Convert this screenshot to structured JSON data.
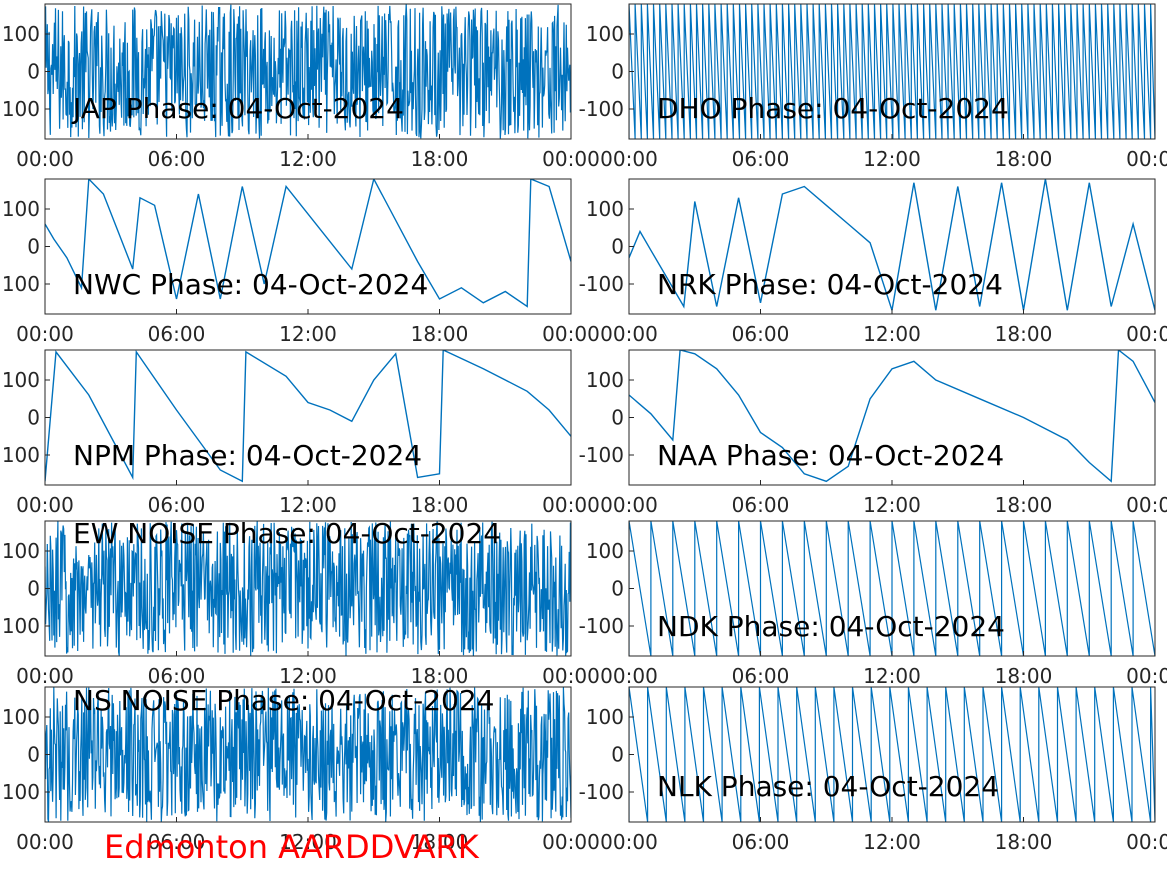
{
  "caption": "Edmonton AARDDVARK",
  "caption_color": "#ff0000",
  "line_color": "#0072bd",
  "chart_data": [
    {
      "type": "line",
      "title": "JAP Phase: 04-Oct-2024",
      "x_ticks": [
        "00:00",
        "06:00",
        "12:00",
        "18:00",
        "00:00"
      ],
      "y_ticks": [
        "100",
        "0",
        "100"
      ],
      "xlim": [
        "00:00",
        "24:00"
      ],
      "ylim": [
        -180,
        180
      ],
      "pattern": "noise",
      "series": [
        {
          "x": [
            "00:00",
            "01:00",
            "02:00",
            "03:00",
            "04:00",
            "05:00",
            "06:00",
            "07:00",
            "08:00",
            "09:00",
            "10:00",
            "11:00",
            "12:00",
            "13:00",
            "14:00",
            "15:00",
            "16:00",
            "17:00",
            "18:00",
            "19:00",
            "20:00",
            "21:00",
            "22:00",
            "23:00",
            "24:00"
          ],
          "y": [
            50,
            -120,
            160,
            -40,
            90,
            -170,
            20,
            140,
            -80,
            60,
            -150,
            110,
            -30,
            170,
            -100,
            40,
            -160,
            80,
            -60,
            130,
            -20,
            150,
            -110,
            70,
            -90
          ]
        }
      ]
    },
    {
      "type": "line",
      "title": "DHO Phase: 04-Oct-2024",
      "x_ticks": [
        "00:00",
        "06:00",
        "12:00",
        "18:00",
        "00:00"
      ],
      "y_ticks": [
        "100",
        "0",
        "-100"
      ],
      "xlim": [
        "00:00",
        "24:00"
      ],
      "ylim": [
        -180,
        180
      ],
      "pattern": "dense-wrap",
      "series": [
        {
          "x": [
            "00:00",
            "06:00",
            "12:00",
            "18:00",
            "24:00"
          ],
          "y": [
            180,
            -180,
            180,
            -180,
            180
          ]
        }
      ]
    },
    {
      "type": "line",
      "title": "NWC Phase: 04-Oct-2024",
      "x_ticks": [
        "00:00",
        "06:00",
        "12:00",
        "18:00",
        "00:00"
      ],
      "y_ticks": [
        "100",
        "0",
        "100"
      ],
      "xlim": [
        "00:00",
        "24:00"
      ],
      "ylim": [
        -180,
        180
      ],
      "pattern": "wrap",
      "series": [
        {
          "x": [
            "00:00",
            "00:24",
            "01:00",
            "01:40",
            "02:00",
            "02:40",
            "03:20",
            "04:00",
            "04:20",
            "05:00",
            "06:00",
            "07:00",
            "08:00",
            "09:00",
            "10:00",
            "11:00",
            "14:00",
            "15:00",
            "17:00",
            "18:00",
            "19:00",
            "20:00",
            "21:00",
            "22:00",
            "22:10",
            "23:00",
            "24:00"
          ],
          "y": [
            60,
            20,
            -30,
            -110,
            180,
            140,
            40,
            -60,
            130,
            110,
            -140,
            140,
            -140,
            160,
            -100,
            160,
            -60,
            180,
            -40,
            -140,
            -110,
            -150,
            -120,
            -160,
            180,
            160,
            -40
          ]
        }
      ]
    },
    {
      "type": "line",
      "title": "NRK Phase: 04-Oct-2024",
      "x_ticks": [
        "00:00",
        "06:00",
        "12:00",
        "18:00",
        "00:00"
      ],
      "y_ticks": [
        "100",
        "0",
        "-100"
      ],
      "xlim": [
        "00:00",
        "24:00"
      ],
      "ylim": [
        -180,
        180
      ],
      "pattern": "wrap",
      "series": [
        {
          "x": [
            "00:00",
            "00:30",
            "01:00",
            "02:30",
            "03:00",
            "04:00",
            "05:00",
            "06:00",
            "07:00",
            "08:00",
            "09:00",
            "10:00",
            "11:00",
            "12:00",
            "13:00",
            "14:00",
            "15:00",
            "16:00",
            "17:00",
            "18:00",
            "19:00",
            "20:00",
            "21:00",
            "22:00",
            "23:00",
            "24:00"
          ],
          "y": [
            -30,
            40,
            -10,
            -160,
            120,
            -160,
            130,
            -150,
            140,
            160,
            110,
            60,
            10,
            -170,
            170,
            -170,
            160,
            -160,
            170,
            -170,
            180,
            -170,
            170,
            -160,
            60,
            -170
          ]
        }
      ]
    },
    {
      "type": "line",
      "title": "NPM Phase: 04-Oct-2024",
      "x_ticks": [
        "00:00",
        "06:00",
        "12:00",
        "18:00",
        "00:00"
      ],
      "y_ticks": [
        "100",
        "0",
        "100"
      ],
      "xlim": [
        "00:00",
        "24:00"
      ],
      "ylim": [
        -180,
        180
      ],
      "pattern": "wrap",
      "series": [
        {
          "x": [
            "00:00",
            "00:30",
            "02:00",
            "04:00",
            "04:10",
            "06:00",
            "08:00",
            "09:00",
            "09:10",
            "11:00",
            "12:00",
            "13:00",
            "14:00",
            "15:00",
            "16:00",
            "17:00",
            "18:00",
            "18:10",
            "20:00",
            "21:00",
            "22:00",
            "23:00",
            "24:00"
          ],
          "y": [
            -170,
            175,
            60,
            -160,
            175,
            20,
            -140,
            -170,
            175,
            110,
            40,
            20,
            -10,
            100,
            170,
            -160,
            -150,
            180,
            130,
            100,
            70,
            20,
            -50
          ]
        }
      ]
    },
    {
      "type": "line",
      "title": "NAA Phase: 04-Oct-2024",
      "x_ticks": [
        "00:00",
        "06:00",
        "12:00",
        "18:00",
        "00:00"
      ],
      "y_ticks": [
        "100",
        "0",
        "-100"
      ],
      "xlim": [
        "00:00",
        "24:00"
      ],
      "ylim": [
        -180,
        180
      ],
      "pattern": "wrap",
      "series": [
        {
          "x": [
            "00:00",
            "01:00",
            "02:00",
            "02:20",
            "03:00",
            "04:00",
            "05:00",
            "06:00",
            "07:00",
            "08:00",
            "09:00",
            "10:00",
            "11:00",
            "12:00",
            "13:00",
            "14:00",
            "16:00",
            "18:00",
            "20:00",
            "21:00",
            "22:00",
            "22:20",
            "23:00",
            "24:00"
          ],
          "y": [
            60,
            10,
            -60,
            180,
            170,
            130,
            60,
            -40,
            -80,
            -150,
            -170,
            -130,
            50,
            130,
            150,
            100,
            50,
            0,
            -60,
            -120,
            -170,
            180,
            150,
            40
          ]
        }
      ]
    },
    {
      "type": "line",
      "title": "EW NOISE Phase: 04-Oct-2024",
      "x_ticks": [
        "00:00",
        "06:00",
        "12:00",
        "18:00",
        "00:00"
      ],
      "y_ticks": [
        "100",
        "0",
        "100"
      ],
      "xlim": [
        "00:00",
        "24:00"
      ],
      "ylim": [
        -180,
        180
      ],
      "pattern": "noise",
      "series": [
        {
          "x": [
            "00:00",
            "01:00",
            "02:00",
            "03:00",
            "04:00",
            "05:00",
            "06:00",
            "07:00",
            "08:00",
            "09:00",
            "10:00",
            "11:00",
            "12:00",
            "13:00",
            "14:00",
            "15:00",
            "16:00",
            "17:00",
            "18:00",
            "19:00",
            "20:00",
            "21:00",
            "22:00",
            "23:00",
            "24:00"
          ],
          "y": [
            20,
            -90,
            130,
            -140,
            60,
            -20,
            150,
            -110,
            80,
            -160,
            40,
            120,
            -60,
            170,
            -130,
            10,
            -80,
            140,
            -170,
            90,
            -40,
            160,
            -120,
            30,
            -70
          ]
        }
      ]
    },
    {
      "type": "line",
      "title": "NDK Phase: 04-Oct-2024",
      "x_ticks": [
        "00:00",
        "06:00",
        "12:00",
        "18:00",
        "00:00"
      ],
      "y_ticks": [
        "100",
        "0",
        "-100"
      ],
      "xlim": [
        "00:00",
        "24:00"
      ],
      "ylim": [
        -180,
        180
      ],
      "pattern": "dense-wrap",
      "series": [
        {
          "x": [
            "00:00",
            "06:00",
            "12:00",
            "18:00",
            "24:00"
          ],
          "y": [
            180,
            -180,
            180,
            -180,
            180
          ]
        }
      ]
    },
    {
      "type": "line",
      "title": "NS NOISE Phase: 04-Oct-2024",
      "x_ticks": [
        "00:00",
        "06:00",
        "12:00",
        "18:00",
        "00:00"
      ],
      "y_ticks": [
        "100",
        "0",
        "100"
      ],
      "xlim": [
        "00:00",
        "24:00"
      ],
      "ylim": [
        -180,
        180
      ],
      "pattern": "noise",
      "series": [
        {
          "x": [
            "00:00",
            "01:00",
            "02:00",
            "03:00",
            "04:00",
            "05:00",
            "06:00",
            "07:00",
            "08:00",
            "09:00",
            "10:00",
            "11:00",
            "12:00",
            "13:00",
            "14:00",
            "15:00",
            "16:00",
            "17:00",
            "18:00",
            "19:00",
            "20:00",
            "21:00",
            "22:00",
            "23:00",
            "24:00"
          ],
          "y": [
            -40,
            110,
            -150,
            70,
            -10,
            160,
            -120,
            50,
            -170,
            90,
            -30,
            140,
            -100,
            20,
            -160,
            120,
            -50,
            170,
            -80,
            60,
            -140,
            100,
            -20,
            130,
            -90
          ]
        }
      ]
    },
    {
      "type": "line",
      "title": "NLK Phase: 04-Oct-2024",
      "x_ticks": [
        "00:00",
        "06:00",
        "12:00",
        "18:00",
        "00:00"
      ],
      "y_ticks": [
        "100",
        "0",
        "-100"
      ],
      "xlim": [
        "00:00",
        "24:00"
      ],
      "ylim": [
        -180,
        180
      ],
      "pattern": "dense-wrap",
      "series": [
        {
          "x": [
            "00:00",
            "06:00",
            "12:00",
            "18:00",
            "24:00"
          ],
          "y": [
            180,
            -180,
            180,
            -180,
            180
          ]
        }
      ]
    }
  ]
}
